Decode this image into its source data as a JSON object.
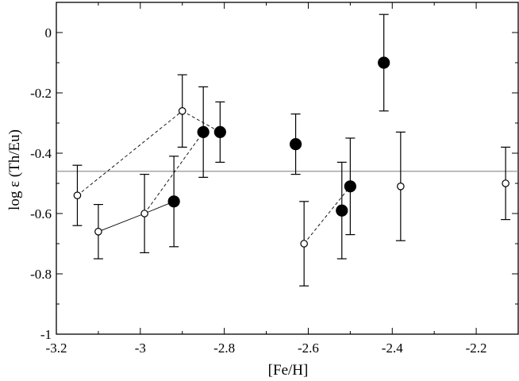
{
  "chart_data": {
    "type": "scatter",
    "title": "",
    "xlabel": "[Fe/H]",
    "ylabel": "log ε (Th/Eu)",
    "xlim": [
      -3.2,
      -2.1
    ],
    "ylim": [
      -1.0,
      0.1
    ],
    "xticks": [
      -3.2,
      -3.0,
      -2.8,
      -2.6,
      -2.4,
      -2.2
    ],
    "xtick_labels": [
      "-3.2",
      "-3",
      "-2.8",
      "-2.6",
      "-2.4",
      "-2.2"
    ],
    "yticks": [
      -1.0,
      -0.8,
      -0.6,
      -0.4,
      -0.2,
      0.0
    ],
    "ytick_labels": [
      "-1",
      "-0.8",
      "-0.6",
      "-0.4",
      "-0.2",
      "0"
    ],
    "grid": false,
    "reference_line": {
      "y": -0.46,
      "color": "#888888"
    },
    "series": [
      {
        "marker": "filled-circle",
        "color": "#000000",
        "points": [
          {
            "x": -2.92,
            "y": -0.56,
            "err": 0.15
          },
          {
            "x": -2.85,
            "y": -0.33,
            "err": 0.15
          },
          {
            "x": -2.81,
            "y": -0.33,
            "err": 0.1
          },
          {
            "x": -2.63,
            "y": -0.37,
            "err": 0.1
          },
          {
            "x": -2.52,
            "y": -0.59,
            "err": 0.16
          },
          {
            "x": -2.5,
            "y": -0.51,
            "err": 0.16
          },
          {
            "x": -2.42,
            "y": -0.1,
            "err": 0.16
          }
        ]
      },
      {
        "marker": "open-circle",
        "color": "#000000",
        "points": [
          {
            "x": -3.15,
            "y": -0.54,
            "err": 0.1
          },
          {
            "x": -3.1,
            "y": -0.66,
            "err": 0.09
          },
          {
            "x": -2.99,
            "y": -0.6,
            "err": 0.13
          },
          {
            "x": -2.9,
            "y": -0.26,
            "err": 0.12
          },
          {
            "x": -2.61,
            "y": -0.7,
            "err": 0.14
          },
          {
            "x": -2.38,
            "y": -0.51,
            "err": 0.18
          },
          {
            "x": -2.13,
            "y": -0.5,
            "err": 0.12
          }
        ]
      }
    ],
    "connectors": [
      {
        "style": "dashed",
        "from": [
          -3.15,
          -0.54
        ],
        "to": [
          -2.9,
          -0.26
        ]
      },
      {
        "style": "dashed",
        "from": [
          -2.9,
          -0.26
        ],
        "to": [
          -2.81,
          -0.33
        ]
      },
      {
        "style": "dashed",
        "from": [
          -2.99,
          -0.6
        ],
        "to": [
          -2.85,
          -0.33
        ]
      },
      {
        "style": "solid",
        "from": [
          -3.1,
          -0.66
        ],
        "to": [
          -2.99,
          -0.6
        ]
      },
      {
        "style": "solid",
        "from": [
          -2.99,
          -0.6
        ],
        "to": [
          -2.92,
          -0.56
        ]
      },
      {
        "style": "dashed",
        "from": [
          -2.61,
          -0.7
        ],
        "to": [
          -2.5,
          -0.51
        ]
      }
    ]
  }
}
